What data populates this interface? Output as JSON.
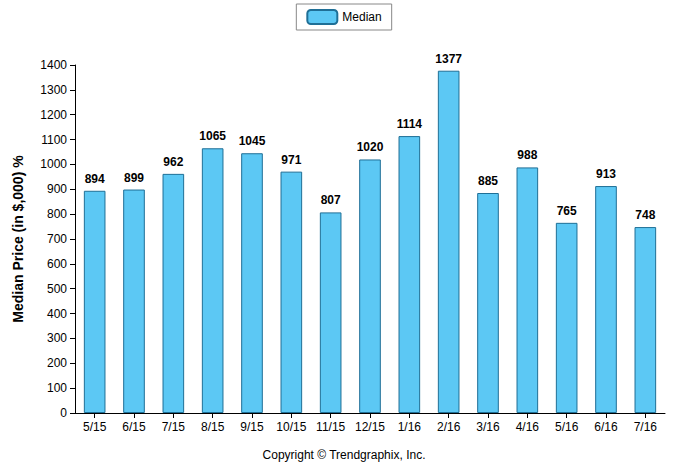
{
  "chart_data": {
    "type": "bar",
    "y_label": "Median Price (in $,000) %",
    "categories": [
      "5/15",
      "6/15",
      "7/15",
      "8/15",
      "9/15",
      "10/15",
      "11/15",
      "12/15",
      "1/16",
      "2/16",
      "3/16",
      "4/16",
      "5/16",
      "6/16",
      "7/16"
    ],
    "series": [
      {
        "name": "Median",
        "color": "#5cc8f4",
        "values": [
          894,
          899,
          962,
          1065,
          1045,
          971,
          807,
          1020,
          1114,
          1377,
          885,
          988,
          765,
          913,
          748
        ]
      }
    ],
    "ylim": [
      0,
      1400
    ],
    "yticks": [
      0,
      100,
      200,
      300,
      400,
      500,
      600,
      700,
      800,
      900,
      1000,
      1100,
      1200,
      1300,
      1400
    ],
    "grid": false,
    "legend": "top",
    "data_labels": true,
    "annotations": [
      "Copyright © Trendgraphix, Inc."
    ]
  }
}
